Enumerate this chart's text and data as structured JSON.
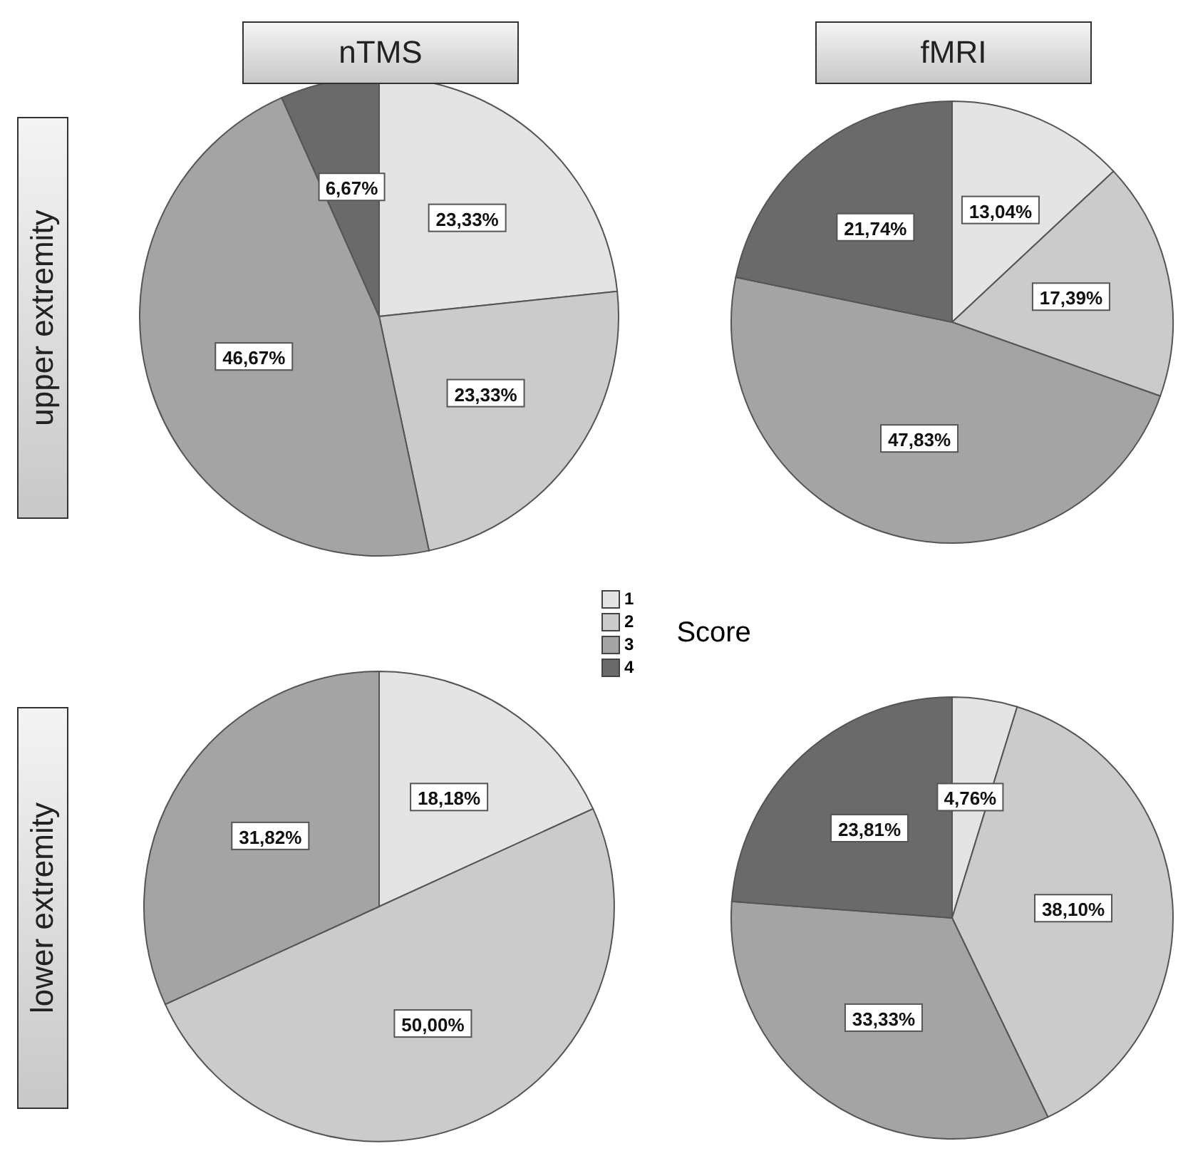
{
  "chart_data": [
    {
      "type": "pie",
      "title": "nTMS",
      "ylabel": "upper extremity",
      "categories": [
        "1",
        "2",
        "3",
        "4"
      ],
      "values": [
        23.33,
        23.33,
        46.67,
        6.67
      ],
      "value_labels": [
        "23,33%",
        "23,33%",
        "46,67%",
        "6,67%"
      ],
      "colors": [
        "#e4e4e4",
        "#cbcbcb",
        "#a4a4a4",
        "#6a6a6a"
      ],
      "legend": "bottom right",
      "legend_title": "Score"
    },
    {
      "type": "pie",
      "title": "fMRI",
      "categories": [
        null,
        null,
        null,
        null
      ],
      "values": [
        13.04,
        17.39,
        47.83,
        21.74
      ],
      "value_labels": [
        "13,04%",
        "17,39%",
        "47,83%",
        "21,74%"
      ],
      "colors": [
        "#e4e4e4",
        "#cbcbcb",
        "#a4a4a4",
        "#6a6a6a"
      ]
    },
    {
      "type": "pie",
      "ylabel": "lower extremity",
      "categories": [
        null,
        null,
        null
      ],
      "values": [
        18.18,
        50.0,
        31.82
      ],
      "value_labels": [
        "18,18%",
        "50,00%",
        "31,82%"
      ],
      "colors": [
        "#e4e4e4",
        "#cbcbcb",
        "#a4a4a4"
      ]
    },
    {
      "type": "pie",
      "categories": [
        null,
        null,
        null,
        null
      ],
      "values": [
        4.76,
        38.1,
        33.33,
        23.81
      ],
      "value_labels": [
        "4,76%",
        "38,10%",
        "33,33%",
        "23,81%"
      ],
      "colors": [
        "#e4e4e4",
        "#cbcbcb",
        "#a4a4a4",
        "#6a6a6a"
      ]
    }
  ]
}
